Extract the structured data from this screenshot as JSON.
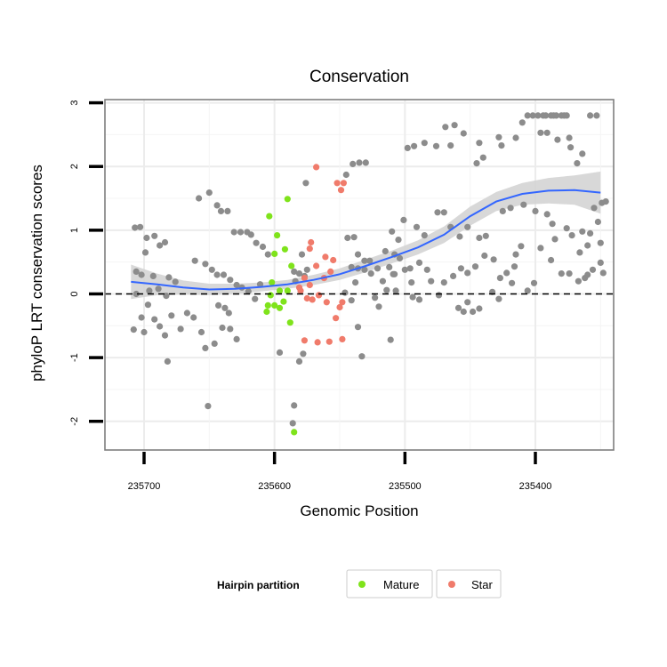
{
  "chart_data": {
    "type": "scatter",
    "title": "Conservation",
    "xlabel": "Genomic Position",
    "ylabel": "phyloP LRT conservation scores",
    "x_reversed": true,
    "xlim": [
      235730,
      235340
    ],
    "ylim": [
      -2.45,
      3.05
    ],
    "x_ticks": [
      235700,
      235600,
      235500,
      235400
    ],
    "x_tick_labels": [
      "235700",
      "235600",
      "235500",
      "235400"
    ],
    "y_ticks": [
      -2,
      -1,
      0,
      1,
      2,
      3
    ],
    "y_tick_labels": [
      "-2",
      "-1",
      "0",
      "1",
      "2",
      "3"
    ],
    "grid": true,
    "reference_line": {
      "y": 0,
      "style": "dashed"
    },
    "legend": {
      "title": "Hairpin partition",
      "position": "bottom",
      "entries": [
        {
          "label": "Mature",
          "color": "#7FE31B"
        },
        {
          "label": "Star",
          "color": "#F07B6B"
        }
      ]
    },
    "colors": {
      "other": "#8C8C8C",
      "mature": "#7FE31B",
      "star": "#F07B6B",
      "smooth": "#3366FF",
      "ribbon": "#D4D4D4"
    },
    "series": [
      {
        "name": "Mature",
        "points": [
          [
            235604,
            1.22
          ],
          [
            235598,
            0.92
          ],
          [
            235590,
            1.49
          ],
          [
            235592,
            0.7
          ],
          [
            235600,
            0.63
          ],
          [
            235587,
            0.44
          ],
          [
            235602,
            0.18
          ],
          [
            235596,
            0.05
          ],
          [
            235590,
            0.05
          ],
          [
            235603,
            -0.02
          ],
          [
            235605,
            -0.18
          ],
          [
            235600,
            -0.18
          ],
          [
            235596,
            -0.22
          ],
          [
            235593,
            -0.12
          ],
          [
            235606,
            -0.28
          ],
          [
            235588,
            -0.45
          ],
          [
            235585,
            -2.17
          ]
        ]
      },
      {
        "name": "Star",
        "points": [
          [
            235568,
            1.99
          ],
          [
            235552,
            1.74
          ],
          [
            235547,
            1.74
          ],
          [
            235549,
            1.63
          ],
          [
            235572,
            0.81
          ],
          [
            235573,
            0.71
          ],
          [
            235561,
            0.58
          ],
          [
            235555,
            0.53
          ],
          [
            235568,
            0.44
          ],
          [
            235557,
            0.35
          ],
          [
            235577,
            0.25
          ],
          [
            235573,
            0.14
          ],
          [
            235562,
            0.25
          ],
          [
            235580,
            0.05
          ],
          [
            235566,
            -0.02
          ],
          [
            235560,
            -0.13
          ],
          [
            235571,
            -0.09
          ],
          [
            235548,
            -0.13
          ],
          [
            235553,
            -0.38
          ],
          [
            235550,
            -0.21
          ],
          [
            235577,
            -0.73
          ],
          [
            235567,
            -0.76
          ],
          [
            235558,
            -0.75
          ],
          [
            235548,
            -0.71
          ],
          [
            235581,
            0.1
          ],
          [
            235575,
            -0.07
          ]
        ]
      },
      {
        "name": "",
        "points": [
          [
            235707,
            1.04
          ],
          [
            235703,
            1.05
          ],
          [
            235698,
            0.88
          ],
          [
            235692,
            0.91
          ],
          [
            235688,
            0.76
          ],
          [
            235684,
            0.81
          ],
          [
            235699,
            0.65
          ],
          [
            235706,
            0.35
          ],
          [
            235702,
            0.3
          ],
          [
            235693,
            0.28
          ],
          [
            235681,
            0.26
          ],
          [
            235676,
            0.19
          ],
          [
            235696,
            0.05
          ],
          [
            235689,
            0.08
          ],
          [
            235706,
            0.0
          ],
          [
            235683,
            -0.03
          ],
          [
            235697,
            -0.17
          ],
          [
            235692,
            -0.4
          ],
          [
            235702,
            -0.37
          ],
          [
            235708,
            -0.56
          ],
          [
            235700,
            -0.6
          ],
          [
            235688,
            -0.51
          ],
          [
            235684,
            -0.65
          ],
          [
            235679,
            -0.34
          ],
          [
            235672,
            -0.55
          ],
          [
            235667,
            -0.3
          ],
          [
            235662,
            -0.37
          ],
          [
            235656,
            -0.6
          ],
          [
            235653,
            -0.85
          ],
          [
            235646,
            -0.78
          ],
          [
            235640,
            -0.53
          ],
          [
            235634,
            -0.55
          ],
          [
            235629,
            -0.71
          ],
          [
            235682,
            -1.06
          ],
          [
            235651,
            -1.76
          ],
          [
            235658,
            1.5
          ],
          [
            235650,
            1.59
          ],
          [
            235644,
            1.39
          ],
          [
            235641,
            1.3
          ],
          [
            235636,
            1.3
          ],
          [
            235631,
            0.97
          ],
          [
            235626,
            0.97
          ],
          [
            235621,
            0.97
          ],
          [
            235618,
            0.93
          ],
          [
            235614,
            0.8
          ],
          [
            235609,
            0.74
          ],
          [
            235605,
            0.62
          ],
          [
            235661,
            0.52
          ],
          [
            235653,
            0.47
          ],
          [
            235648,
            0.38
          ],
          [
            235644,
            0.3
          ],
          [
            235639,
            0.3
          ],
          [
            235634,
            0.22
          ],
          [
            235629,
            0.14
          ],
          [
            235625,
            0.1
          ],
          [
            235620,
            0.04
          ],
          [
            235615,
            -0.08
          ],
          [
            235611,
            0.15
          ],
          [
            235643,
            -0.18
          ],
          [
            235638,
            -0.22
          ],
          [
            235635,
            -0.3
          ],
          [
            235578,
            -0.94
          ],
          [
            235581,
            -1.06
          ],
          [
            235585,
            -1.75
          ],
          [
            235586,
            -2.03
          ],
          [
            235596,
            -0.92
          ],
          [
            235576,
            1.74
          ],
          [
            235579,
            0.62
          ],
          [
            235575,
            0.38
          ],
          [
            235577,
            0.28
          ],
          [
            235584,
            0.2
          ],
          [
            235581,
            0.32
          ],
          [
            235585,
            0.35
          ],
          [
            235544,
            0.88
          ],
          [
            235539,
            0.89
          ],
          [
            235541,
            0.42
          ],
          [
            235536,
            0.4
          ],
          [
            235531,
            0.38
          ],
          [
            235526,
            0.32
          ],
          [
            235521,
            0.4
          ],
          [
            235517,
            0.2
          ],
          [
            235514,
            0.06
          ],
          [
            235538,
            0.18
          ],
          [
            235546,
            0.02
          ],
          [
            235541,
            -0.1
          ],
          [
            235536,
            -0.52
          ],
          [
            235533,
            -0.98
          ],
          [
            235523,
            -0.06
          ],
          [
            235520,
            -0.2
          ],
          [
            235545,
            1.87
          ],
          [
            235540,
            2.04
          ],
          [
            235535,
            2.06
          ],
          [
            235530,
            2.06
          ],
          [
            235508,
            0.31
          ],
          [
            235500,
            0.38
          ],
          [
            235498,
            2.29
          ],
          [
            235493,
            2.32
          ],
          [
            235485,
            2.37
          ],
          [
            235476,
            2.32
          ],
          [
            235469,
            2.62
          ],
          [
            235462,
            2.65
          ],
          [
            235455,
            2.52
          ],
          [
            235465,
            2.33
          ],
          [
            235440,
            2.14
          ],
          [
            235443,
            2.37
          ],
          [
            235445,
            2.05
          ],
          [
            235428,
            2.46
          ],
          [
            235426,
            2.33
          ],
          [
            235396,
            2.53
          ],
          [
            235391,
            2.53
          ],
          [
            235383,
            2.42
          ],
          [
            235378,
            2.8
          ],
          [
            235415,
            2.45
          ],
          [
            235410,
            2.69
          ],
          [
            235374,
            2.45
          ],
          [
            235373,
            2.3
          ],
          [
            235358,
            2.8
          ],
          [
            235353,
            2.8
          ],
          [
            235364,
            2.2
          ],
          [
            235368,
            2.05
          ],
          [
            235392,
            2.8
          ],
          [
            235388,
            2.8
          ],
          [
            235384,
            2.8
          ],
          [
            235380,
            2.8
          ],
          [
            235376,
            2.8
          ],
          [
            235402,
            2.8
          ],
          [
            235398,
            2.8
          ],
          [
            235406,
            2.8
          ],
          [
            235394,
            2.8
          ],
          [
            235386,
            2.8
          ],
          [
            235501,
            1.16
          ],
          [
            235491,
            1.05
          ],
          [
            235485,
            0.92
          ],
          [
            235475,
            1.28
          ],
          [
            235470,
            1.28
          ],
          [
            235465,
            1.05
          ],
          [
            235458,
            0.9
          ],
          [
            235452,
            1.05
          ],
          [
            235443,
            0.88
          ],
          [
            235438,
            0.91
          ],
          [
            235425,
            1.3
          ],
          [
            235419,
            1.35
          ],
          [
            235409,
            1.4
          ],
          [
            235400,
            1.3
          ],
          [
            235391,
            1.25
          ],
          [
            235387,
            1.1
          ],
          [
            235376,
            1.03
          ],
          [
            235372,
            0.92
          ],
          [
            235364,
            0.98
          ],
          [
            235355,
            1.35
          ],
          [
            235349,
            1.43
          ],
          [
            235346,
            1.45
          ],
          [
            235352,
            1.13
          ],
          [
            235358,
            0.95
          ],
          [
            235366,
            0.65
          ],
          [
            235360,
            0.76
          ],
          [
            235350,
            0.8
          ],
          [
            235356,
            0.38
          ],
          [
            235360,
            0.3
          ],
          [
            235350,
            0.49
          ],
          [
            235348,
            0.33
          ],
          [
            235367,
            0.2
          ],
          [
            235401,
            0.17
          ],
          [
            235406,
            0.05
          ],
          [
            235415,
            0.62
          ],
          [
            235411,
            0.75
          ],
          [
            235388,
            0.53
          ],
          [
            235385,
            0.86
          ],
          [
            235380,
            0.32
          ],
          [
            235374,
            0.32
          ],
          [
            235362,
            0.25
          ],
          [
            235396,
            0.72
          ],
          [
            235432,
            0.54
          ],
          [
            235439,
            0.6
          ],
          [
            235446,
            0.43
          ],
          [
            235452,
            0.33
          ],
          [
            235457,
            0.4
          ],
          [
            235463,
            0.28
          ],
          [
            235470,
            0.18
          ],
          [
            235474,
            -0.02
          ],
          [
            235480,
            0.2
          ],
          [
            235483,
            0.38
          ],
          [
            235489,
            0.49
          ],
          [
            235496,
            0.4
          ],
          [
            235504,
            0.56
          ],
          [
            235509,
            0.31
          ],
          [
            235512,
            0.42
          ],
          [
            235527,
            0.52
          ],
          [
            235459,
            -0.22
          ],
          [
            235455,
            -0.28
          ],
          [
            235452,
            -0.13
          ],
          [
            235448,
            -0.28
          ],
          [
            235443,
            -0.23
          ],
          [
            235427,
            0.25
          ],
          [
            235418,
            0.17
          ],
          [
            235422,
            0.33
          ],
          [
            235416,
            0.43
          ],
          [
            235511,
            -0.72
          ],
          [
            235508,
            0.62
          ],
          [
            235495,
            0.18
          ],
          [
            235494,
            -0.05
          ],
          [
            235489,
            -0.09
          ],
          [
            235433,
            0.03
          ],
          [
            235428,
            -0.08
          ],
          [
            235510,
            0.98
          ],
          [
            235515,
            0.67
          ],
          [
            235505,
            0.85
          ],
          [
            235531,
            0.52
          ],
          [
            235536,
            0.62
          ],
          [
            235507,
            0.05
          ]
        ]
      }
    ],
    "smooth": {
      "x": [
        235710,
        235690,
        235670,
        235650,
        235630,
        235610,
        235590,
        235570,
        235550,
        235530,
        235510,
        235490,
        235470,
        235450,
        235430,
        235410,
        235390,
        235370,
        235350
      ],
      "y": [
        0.19,
        0.15,
        0.1,
        0.07,
        0.08,
        0.11,
        0.15,
        0.22,
        0.31,
        0.44,
        0.58,
        0.73,
        0.93,
        1.22,
        1.45,
        1.57,
        1.62,
        1.63,
        1.59
      ],
      "ymin": [
        -0.08,
        -0.02,
        -0.01,
        -0.02,
        0.0,
        0.04,
        0.08,
        0.14,
        0.22,
        0.34,
        0.48,
        0.62,
        0.8,
        1.07,
        1.3,
        1.4,
        1.42,
        1.4,
        1.26
      ],
      "ymax": [
        0.46,
        0.32,
        0.21,
        0.16,
        0.16,
        0.18,
        0.22,
        0.3,
        0.4,
        0.54,
        0.68,
        0.84,
        1.06,
        1.37,
        1.6,
        1.74,
        1.82,
        1.86,
        1.92
      ]
    }
  }
}
